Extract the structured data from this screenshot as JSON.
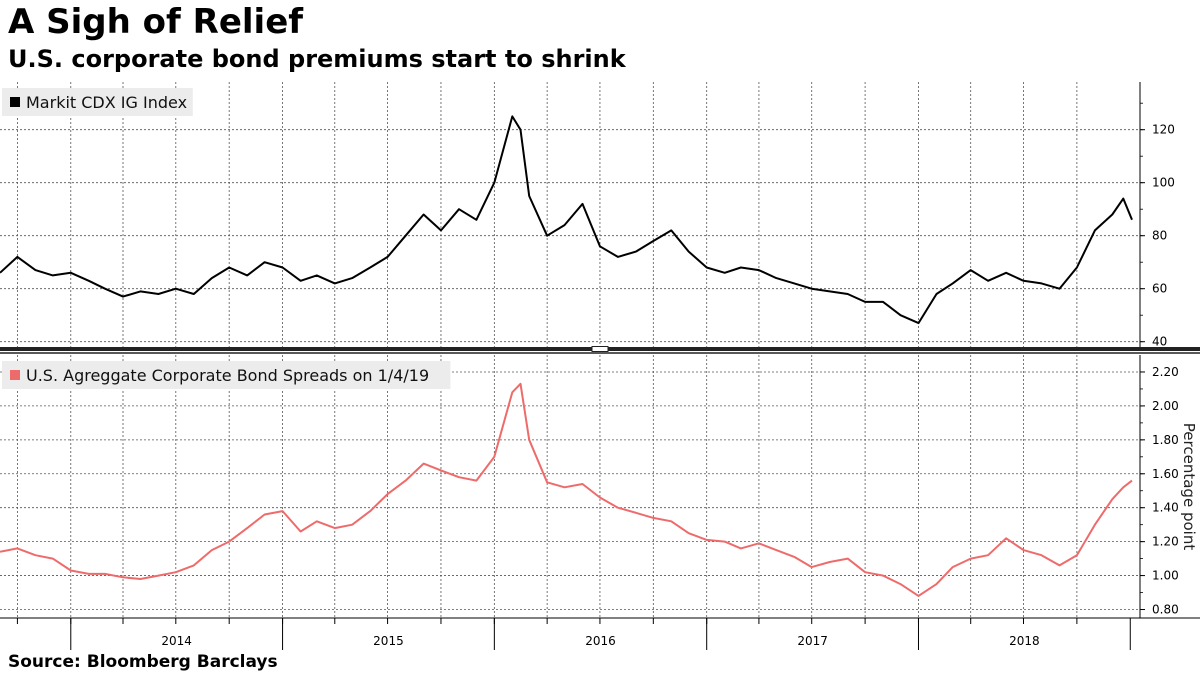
{
  "title": "A Sigh of Relief",
  "subtitle": "U.S. corporate bond premiums start to shrink",
  "source": "Source: Bloomberg Barclays",
  "chart_data": [
    {
      "type": "line",
      "legend_placement": "top-left",
      "grid": true,
      "x_range": [
        "2013-09-01",
        "2019-01-04"
      ],
      "ylim": [
        38,
        138
      ],
      "yticks": [
        40,
        60,
        80,
        100,
        120
      ],
      "ytick_labels": [
        "40",
        "60",
        "80",
        "100",
        "120"
      ],
      "series": [
        {
          "name": "Markit CDX IG Index",
          "color": "#000000",
          "points": [
            [
              "2013-09-01",
              66
            ],
            [
              "2013-10-01",
              72
            ],
            [
              "2013-11-01",
              67
            ],
            [
              "2013-12-01",
              65
            ],
            [
              "2014-01-01",
              66
            ],
            [
              "2014-02-01",
              63
            ],
            [
              "2014-03-01",
              60
            ],
            [
              "2014-04-01",
              57
            ],
            [
              "2014-05-01",
              59
            ],
            [
              "2014-06-01",
              58
            ],
            [
              "2014-07-01",
              60
            ],
            [
              "2014-08-01",
              58
            ],
            [
              "2014-09-01",
              64
            ],
            [
              "2014-10-01",
              68
            ],
            [
              "2014-11-01",
              65
            ],
            [
              "2014-12-01",
              70
            ],
            [
              "2015-01-01",
              68
            ],
            [
              "2015-02-01",
              63
            ],
            [
              "2015-03-01",
              65
            ],
            [
              "2015-04-01",
              62
            ],
            [
              "2015-05-01",
              64
            ],
            [
              "2015-06-01",
              68
            ],
            [
              "2015-07-01",
              72
            ],
            [
              "2015-08-01",
              80
            ],
            [
              "2015-09-01",
              88
            ],
            [
              "2015-10-01",
              82
            ],
            [
              "2015-11-01",
              90
            ],
            [
              "2015-12-01",
              86
            ],
            [
              "2016-01-01",
              100
            ],
            [
              "2016-02-01",
              125
            ],
            [
              "2016-02-15",
              120
            ],
            [
              "2016-03-01",
              95
            ],
            [
              "2016-04-01",
              80
            ],
            [
              "2016-05-01",
              84
            ],
            [
              "2016-06-01",
              92
            ],
            [
              "2016-07-01",
              76
            ],
            [
              "2016-08-01",
              72
            ],
            [
              "2016-09-01",
              74
            ],
            [
              "2016-10-01",
              78
            ],
            [
              "2016-11-01",
              82
            ],
            [
              "2016-12-01",
              74
            ],
            [
              "2017-01-01",
              68
            ],
            [
              "2017-02-01",
              66
            ],
            [
              "2017-03-01",
              68
            ],
            [
              "2017-04-01",
              67
            ],
            [
              "2017-05-01",
              64
            ],
            [
              "2017-06-01",
              62
            ],
            [
              "2017-07-01",
              60
            ],
            [
              "2017-08-01",
              59
            ],
            [
              "2017-09-01",
              58
            ],
            [
              "2017-10-01",
              55
            ],
            [
              "2017-11-01",
              55
            ],
            [
              "2017-12-01",
              50
            ],
            [
              "2018-01-01",
              47
            ],
            [
              "2018-02-01",
              58
            ],
            [
              "2018-03-01",
              62
            ],
            [
              "2018-04-01",
              67
            ],
            [
              "2018-05-01",
              63
            ],
            [
              "2018-06-01",
              66
            ],
            [
              "2018-07-01",
              63
            ],
            [
              "2018-08-01",
              62
            ],
            [
              "2018-09-01",
              60
            ],
            [
              "2018-10-01",
              68
            ],
            [
              "2018-11-01",
              82
            ],
            [
              "2018-12-01",
              88
            ],
            [
              "2018-12-20",
              94
            ],
            [
              "2019-01-04",
              86
            ]
          ]
        }
      ]
    },
    {
      "type": "line",
      "legend_placement": "top-left",
      "grid": true,
      "x_range": [
        "2013-09-01",
        "2019-01-04"
      ],
      "ylim": [
        0.75,
        2.3
      ],
      "yticks": [
        0.8,
        1.0,
        1.2,
        1.4,
        1.6,
        1.8,
        2.0,
        2.2
      ],
      "ytick_labels": [
        "0.80",
        "1.00",
        "1.20",
        "1.40",
        "1.60",
        "1.80",
        "2.00",
        "2.20"
      ],
      "ylabel": "Percentage point",
      "series": [
        {
          "name": "U.S. Agreggate Corporate Bond Spreads on 1/4/19",
          "color": "#ee6b6b",
          "points": [
            [
              "2013-09-01",
              1.14
            ],
            [
              "2013-10-01",
              1.16
            ],
            [
              "2013-11-01",
              1.12
            ],
            [
              "2013-12-01",
              1.1
            ],
            [
              "2014-01-01",
              1.03
            ],
            [
              "2014-02-01",
              1.01
            ],
            [
              "2014-03-01",
              1.01
            ],
            [
              "2014-04-01",
              0.99
            ],
            [
              "2014-05-01",
              0.98
            ],
            [
              "2014-06-01",
              1.0
            ],
            [
              "2014-07-01",
              1.02
            ],
            [
              "2014-08-01",
              1.06
            ],
            [
              "2014-09-01",
              1.15
            ],
            [
              "2014-10-01",
              1.2
            ],
            [
              "2014-11-01",
              1.28
            ],
            [
              "2014-12-01",
              1.36
            ],
            [
              "2015-01-01",
              1.38
            ],
            [
              "2015-02-01",
              1.26
            ],
            [
              "2015-03-01",
              1.32
            ],
            [
              "2015-04-01",
              1.28
            ],
            [
              "2015-05-01",
              1.3
            ],
            [
              "2015-06-01",
              1.38
            ],
            [
              "2015-07-01",
              1.48
            ],
            [
              "2015-08-01",
              1.56
            ],
            [
              "2015-09-01",
              1.66
            ],
            [
              "2015-10-01",
              1.62
            ],
            [
              "2015-11-01",
              1.58
            ],
            [
              "2015-12-01",
              1.56
            ],
            [
              "2016-01-01",
              1.7
            ],
            [
              "2016-02-01",
              2.08
            ],
            [
              "2016-02-15",
              2.13
            ],
            [
              "2016-03-01",
              1.8
            ],
            [
              "2016-04-01",
              1.55
            ],
            [
              "2016-05-01",
              1.52
            ],
            [
              "2016-06-01",
              1.54
            ],
            [
              "2016-07-01",
              1.46
            ],
            [
              "2016-08-01",
              1.4
            ],
            [
              "2016-09-01",
              1.37
            ],
            [
              "2016-10-01",
              1.34
            ],
            [
              "2016-11-01",
              1.32
            ],
            [
              "2016-12-01",
              1.25
            ],
            [
              "2017-01-01",
              1.21
            ],
            [
              "2017-02-01",
              1.2
            ],
            [
              "2017-03-01",
              1.16
            ],
            [
              "2017-04-01",
              1.19
            ],
            [
              "2017-05-01",
              1.15
            ],
            [
              "2017-06-01",
              1.11
            ],
            [
              "2017-07-01",
              1.05
            ],
            [
              "2017-08-01",
              1.08
            ],
            [
              "2017-09-01",
              1.1
            ],
            [
              "2017-10-01",
              1.02
            ],
            [
              "2017-11-01",
              1.0
            ],
            [
              "2017-12-01",
              0.95
            ],
            [
              "2018-01-01",
              0.88
            ],
            [
              "2018-02-01",
              0.95
            ],
            [
              "2018-03-01",
              1.05
            ],
            [
              "2018-04-01",
              1.1
            ],
            [
              "2018-05-01",
              1.12
            ],
            [
              "2018-06-01",
              1.22
            ],
            [
              "2018-07-01",
              1.15
            ],
            [
              "2018-08-01",
              1.12
            ],
            [
              "2018-09-01",
              1.06
            ],
            [
              "2018-10-01",
              1.12
            ],
            [
              "2018-11-01",
              1.3
            ],
            [
              "2018-12-01",
              1.45
            ],
            [
              "2018-12-20",
              1.52
            ],
            [
              "2019-01-04",
              1.56
            ]
          ]
        }
      ]
    }
  ],
  "x_axis": {
    "year_labels": [
      "2014",
      "2015",
      "2016",
      "2017",
      "2018"
    ]
  }
}
